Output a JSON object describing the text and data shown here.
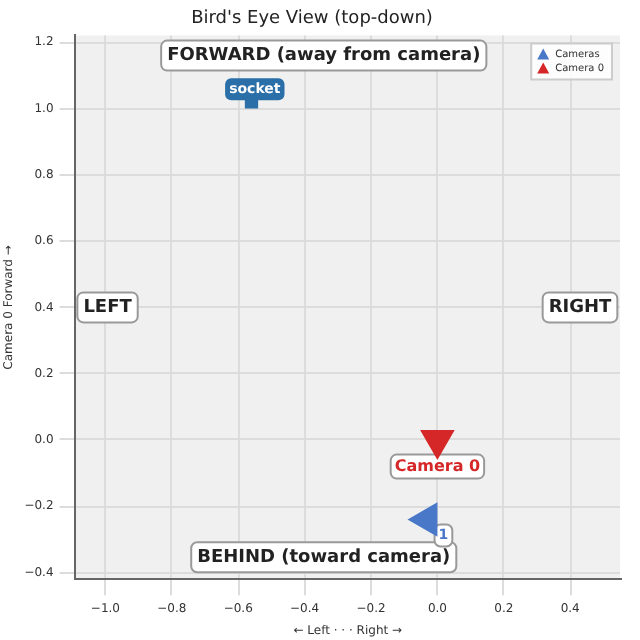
{
  "chart_data": {
    "type": "scatter",
    "title": "Bird's Eye View (top-down)",
    "xlabel": "← Left · · · Right →",
    "ylabel": "Camera 0 Forward →",
    "xlim": [
      -1.09,
      0.55
    ],
    "ylim": [
      -0.42,
      1.22
    ],
    "xticks": [
      {
        "value": -1,
        "label": "−1.0"
      },
      -0.8,
      -0.6,
      -0.4,
      -0.2,
      {
        "value": 0,
        "label": "0.0"
      },
      0.2,
      0.4
    ],
    "yticks": [
      -0.4,
      -0.2,
      {
        "value": 0,
        "label": "0.0"
      },
      0.2,
      0.4,
      0.6,
      0.8,
      {
        "value": 1,
        "label": "1.0"
      },
      1.2
    ],
    "grid": true,
    "legend": "top right",
    "marker": "triangle",
    "series": [
      {
        "name": "Cameras",
        "color": "#4a78c8",
        "x": [
          -0.03
        ],
        "values": [
          -0.24
        ]
      },
      {
        "name": "Camera 0",
        "color": "#d62728",
        "x": [
          0.0
        ],
        "values": [
          0.0
        ]
      },
      {
        "color": "#2a6fa8",
        "x": [
          -0.56
        ],
        "values": [
          1.02
        ],
        "marker": "square"
      }
    ],
    "annotations": [
      "FORWARD (away from camera)",
      "LEFT",
      "RIGHT",
      "BEHIND (toward camera)",
      {
        "text": "socket",
        "x": -0.55,
        "y": 1.04
      },
      {
        "text": "Camera 0",
        "x": 0.0,
        "y": -0.02
      },
      {
        "text": "1",
        "x": -0.03,
        "y": -0.24
      }
    ]
  }
}
